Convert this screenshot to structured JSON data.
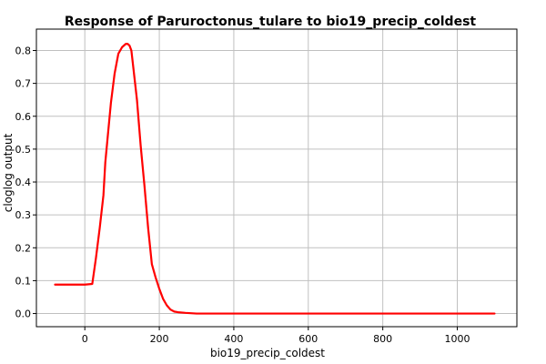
{
  "chart_data": {
    "type": "line",
    "title": "Response of Paruroctonus_tulare to bio19_precip_coldest",
    "xlabel": "bio19_precip_coldest",
    "ylabel": "cloglog output",
    "xlim": [
      -130,
      1160
    ],
    "ylim": [
      -0.04,
      0.865
    ],
    "x_ticks": [
      0,
      200,
      400,
      600,
      800,
      1000
    ],
    "y_ticks": [
      0.0,
      0.1,
      0.2,
      0.3,
      0.4,
      0.5,
      0.6,
      0.7,
      0.8
    ],
    "x_tick_labels": [
      "0",
      "200",
      "400",
      "600",
      "800",
      "1000"
    ],
    "y_tick_labels": [
      "0.0",
      "0.1",
      "0.2",
      "0.3",
      "0.4",
      "0.5",
      "0.6",
      "0.7",
      "0.8"
    ],
    "grid": true,
    "legend": "none",
    "series": [
      {
        "color": "#ff0000",
        "x": [
          -80,
          0,
          20,
          30,
          40,
          50,
          55,
          60,
          70,
          80,
          90,
          100,
          110,
          115,
          120,
          125,
          130,
          140,
          150,
          160,
          170,
          180,
          190,
          200,
          210,
          220,
          230,
          240,
          250,
          270,
          300,
          400,
          600,
          800,
          1000,
          1100
        ],
        "y": [
          0.088,
          0.088,
          0.09,
          0.17,
          0.26,
          0.36,
          0.46,
          0.52,
          0.64,
          0.73,
          0.79,
          0.81,
          0.82,
          0.82,
          0.815,
          0.8,
          0.75,
          0.65,
          0.51,
          0.39,
          0.26,
          0.15,
          0.11,
          0.075,
          0.045,
          0.025,
          0.012,
          0.006,
          0.004,
          0.002,
          0.0,
          0.0,
          0.0,
          0.0,
          0.0,
          0.0
        ]
      }
    ]
  }
}
